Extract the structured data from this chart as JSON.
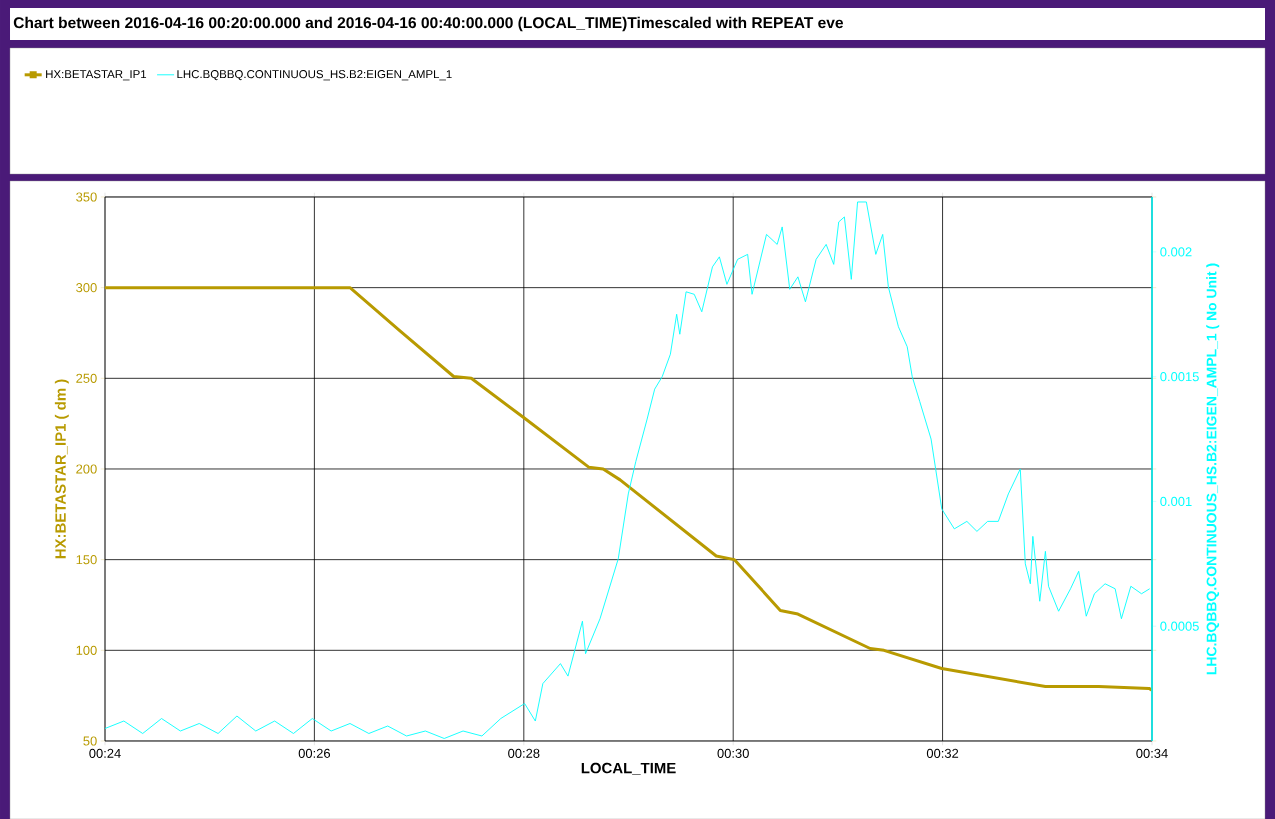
{
  "chart_data": {
    "type": "line",
    "title": "Chart between 2016-04-16 00:20:00.000 and 2016-04-16 00:40:00.000 (LOCAL_TIME)Timescaled with REPEAT eve",
    "xlabel": "LOCAL_TIME",
    "ylabel": "HX:BETASTAR_IP1 ( dm )",
    "y2label": "LHC.BQBBQ.CONTINUOUS_HS.B2:EIGEN_AMPL_1 ( No Unit )",
    "xlim": [
      0.4,
      0.56667
    ],
    "ylim": [
      50,
      350
    ],
    "y2lim": [
      4e-05,
      0.00222
    ],
    "xticks": [
      {
        "value": 0.4,
        "label": "00:24"
      },
      {
        "value": 0.43333,
        "label": "00:26"
      },
      {
        "value": 0.46667,
        "label": "00:28"
      },
      {
        "value": 0.5,
        "label": "00:30"
      },
      {
        "value": 0.53333,
        "label": "00:32"
      },
      {
        "value": 0.56667,
        "label": "00:34"
      }
    ],
    "yticks": [
      50,
      100,
      150,
      200,
      250,
      300,
      350
    ],
    "y2ticks": [
      0.0005,
      0.001,
      0.0015,
      0.002
    ],
    "grid": true,
    "legend": "top left",
    "series": [
      {
        "name": "HX:BETASTAR_IP1",
        "color": "#b89a00",
        "x": [
          0.4,
          0.439,
          0.447,
          0.4555,
          0.4583,
          0.4668,
          0.477,
          0.4793,
          0.482,
          0.4973,
          0.5002,
          0.5075,
          0.5103,
          0.5218,
          0.524,
          0.5332,
          0.5497,
          0.5582,
          0.5662,
          0.56667
        ],
        "values": [
          300,
          300,
          276,
          251,
          250,
          228,
          201,
          200,
          194,
          152,
          150,
          122,
          120,
          101,
          100,
          90,
          80,
          80,
          79,
          78
        ]
      },
      {
        "name": "LHC.BQBBQ.CONTINUOUS_HS.B2:EIGEN_AMPL_1",
        "color": "#00ffff",
        "axis": "y2",
        "x": [
          0.4,
          0.403,
          0.406,
          0.409,
          0.412,
          0.415,
          0.418,
          0.421,
          0.424,
          0.427,
          0.43,
          0.433,
          0.436,
          0.439,
          0.442,
          0.445,
          0.448,
          0.451,
          0.454,
          0.457,
          0.46,
          0.463,
          0.4668,
          0.4685,
          0.4697,
          0.4725,
          0.4737,
          0.476,
          0.4765,
          0.4788,
          0.4817,
          0.4833,
          0.4845,
          0.4863,
          0.4875,
          0.4887,
          0.49,
          0.491,
          0.4915,
          0.4925,
          0.4938,
          0.495,
          0.4967,
          0.4978,
          0.499,
          0.5007,
          0.5023,
          0.503,
          0.5053,
          0.507,
          0.5078,
          0.509,
          0.5103,
          0.5115,
          0.5132,
          0.5148,
          0.516,
          0.5168,
          0.5177,
          0.5188,
          0.5198,
          0.5212,
          0.5227,
          0.5238,
          0.5247,
          0.5263,
          0.5277,
          0.5285,
          0.5297,
          0.5315,
          0.5332,
          0.5352,
          0.5372,
          0.5388,
          0.5405,
          0.5422,
          0.5438,
          0.5457,
          0.5465,
          0.5473,
          0.5477,
          0.5488,
          0.5497,
          0.5502,
          0.5518,
          0.5537,
          0.555,
          0.5562,
          0.5575,
          0.5592,
          0.5608,
          0.5618,
          0.5633,
          0.565,
          0.5663
        ],
        "values": [
          9e-05,
          0.00012,
          7e-05,
          0.00013,
          8e-05,
          0.00011,
          7e-05,
          0.00014,
          8e-05,
          0.00012,
          7e-05,
          0.00013,
          8e-05,
          0.00011,
          7e-05,
          0.0001,
          6e-05,
          8e-05,
          5e-05,
          8e-05,
          6e-05,
          0.00013,
          0.00019,
          0.00012,
          0.00027,
          0.00035,
          0.0003,
          0.00052,
          0.00039,
          0.00053,
          0.00077,
          0.00103,
          0.00116,
          0.00133,
          0.00145,
          0.0015,
          0.00159,
          0.00175,
          0.00167,
          0.00184,
          0.00183,
          0.00176,
          0.00194,
          0.00198,
          0.00187,
          0.00197,
          0.00199,
          0.00183,
          0.00207,
          0.00203,
          0.0021,
          0.00185,
          0.0019,
          0.0018,
          0.00197,
          0.00203,
          0.00195,
          0.00212,
          0.00214,
          0.00189,
          0.0022,
          0.0022,
          0.00199,
          0.00207,
          0.00186,
          0.0017,
          0.00162,
          0.0015,
          0.0014,
          0.00125,
          0.00097,
          0.00089,
          0.00092,
          0.00088,
          0.00092,
          0.00092,
          0.00103,
          0.00113,
          0.00075,
          0.00067,
          0.00086,
          0.0006,
          0.0008,
          0.00066,
          0.00056,
          0.00065,
          0.00072,
          0.00054,
          0.00063,
          0.00067,
          0.00065,
          0.00053,
          0.00066,
          0.00063,
          0.00065
        ]
      }
    ]
  }
}
